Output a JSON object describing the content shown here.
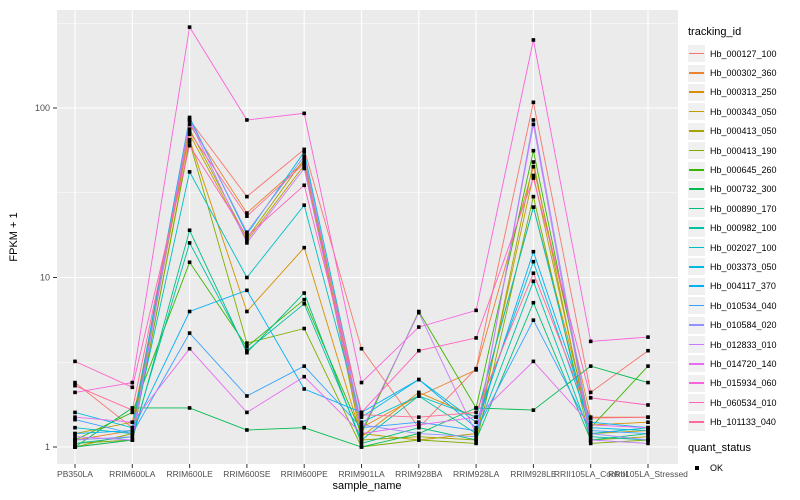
{
  "chart_data": {
    "type": "line",
    "title": "",
    "xlabel": "sample_name",
    "ylabel": "FPKM + 1",
    "y_scale": "log10",
    "y_ticks": [
      1,
      10,
      100
    ],
    "y_minor_ticks": [
      3.162,
      31.62,
      316.2
    ],
    "ylim": [
      0.95,
      380
    ],
    "legend_position": "right",
    "legend_title": "tracking_id",
    "grid": true,
    "panel_bg": "#EBEBEB",
    "grid_color": "#FFFFFF",
    "tick_label_color": "#4D4D4D",
    "point_marker": "square",
    "point_color": "#000000",
    "categories": [
      "PB350LA",
      "RRIM600LA",
      "RRIM600LE",
      "RRIM600SE",
      "RRIM600PE",
      "RRIM901LA",
      "RRIM928BA",
      "RRIM928LA",
      "RRIM928LE",
      "RRII105LA_Control",
      "RRII105LA_Stressed"
    ],
    "series": [
      {
        "name": "Hb_000127_100",
        "color": "#F8766D",
        "values": [
          2.4,
          1.3,
          85,
          30,
          57,
          3.8,
          1.3,
          2.9,
          108,
          2.1,
          3.7
        ]
      },
      {
        "name": "Hb_000302_360",
        "color": "#EA8331",
        "values": [
          1.1,
          1.25,
          80,
          24,
          48,
          1.3,
          2.0,
          2.85,
          45,
          1.5,
          1.5
        ]
      },
      {
        "name": "Hb_000313_250",
        "color": "#D89000",
        "values": [
          1.0,
          1.1,
          65,
          6.3,
          15,
          1.15,
          2.1,
          1.5,
          26,
          1.35,
          1.4
        ]
      },
      {
        "name": "Hb_000343_050",
        "color": "#C09B00",
        "values": [
          1.2,
          1.4,
          70,
          16.5,
          46,
          1.2,
          1.1,
          1.2,
          40,
          1.2,
          1.25
        ]
      },
      {
        "name": "Hb_000413_050",
        "color": "#A3A500",
        "values": [
          1.0,
          1.2,
          75,
          17,
          50,
          1.1,
          1.15,
          1.1,
          48,
          1.1,
          1.15
        ]
      },
      {
        "name": "Hb_000413_190",
        "color": "#7CAE00",
        "values": [
          1.05,
          1.1,
          63,
          4.1,
          5.0,
          1.0,
          1.1,
          1.05,
          30,
          1.05,
          1.1
        ]
      },
      {
        "name": "Hb_000645_260",
        "color": "#39B600",
        "values": [
          1.1,
          1.6,
          12.3,
          3.9,
          7.4,
          1.2,
          6.3,
          1.7,
          56,
          1.3,
          3.0
        ]
      },
      {
        "name": "Hb_000732_300",
        "color": "#00BB4E",
        "values": [
          1.0,
          1.7,
          1.7,
          1.26,
          1.3,
          1.0,
          1.2,
          1.7,
          1.65,
          3.0,
          2.4
        ]
      },
      {
        "name": "Hb_000890_170",
        "color": "#00BF7D",
        "values": [
          1.0,
          1.1,
          19,
          3.6,
          8.1,
          1.05,
          1.3,
          1.1,
          7.1,
          1.1,
          1.2
        ]
      },
      {
        "name": "Hb_000982_100",
        "color": "#00C1A3",
        "values": [
          1.05,
          1.15,
          16,
          3.7,
          7.0,
          1.1,
          2.0,
          1.2,
          9.5,
          1.15,
          1.1
        ]
      },
      {
        "name": "Hb_002027_100",
        "color": "#00BFC4",
        "values": [
          1.3,
          1.2,
          42,
          10,
          26.7,
          1.4,
          2.0,
          1.5,
          26,
          1.2,
          1.3
        ]
      },
      {
        "name": "Hb_003373_050",
        "color": "#00BAE0",
        "values": [
          1.6,
          1.3,
          88,
          18,
          55,
          1.5,
          2.5,
          1.4,
          12.4,
          1.3,
          1.25
        ]
      },
      {
        "name": "Hb_004117_370",
        "color": "#00B0F6",
        "values": [
          1.2,
          1.25,
          6.3,
          8.4,
          2.2,
          1.6,
          2.5,
          1.3,
          14.2,
          1.4,
          1.3
        ]
      },
      {
        "name": "Hb_010534_040",
        "color": "#35A2FF",
        "values": [
          1.45,
          1.2,
          4.7,
          2.0,
          3.0,
          1.3,
          1.4,
          1.25,
          5.6,
          1.25,
          1.2
        ]
      },
      {
        "name": "Hb_010584_020",
        "color": "#9590FF",
        "values": [
          1.1,
          1.15,
          86,
          18.5,
          52,
          1.35,
          1.2,
          1.15,
          85,
          1.2,
          1.1
        ]
      },
      {
        "name": "Hb_012833_010",
        "color": "#C77CFF",
        "values": [
          1.15,
          1.1,
          84,
          16,
          44,
          1.25,
          6.2,
          1.2,
          80,
          1.1,
          1.05
        ]
      },
      {
        "name": "Hb_014720_140",
        "color": "#E76BF3",
        "values": [
          1.5,
          1.4,
          3.8,
          1.6,
          2.6,
          1.2,
          1.35,
          1.5,
          3.2,
          1.35,
          1.3
        ]
      },
      {
        "name": "Hb_015934_060",
        "color": "#FA62DB",
        "values": [
          2.1,
          2.4,
          300,
          85,
          93,
          2.4,
          5.1,
          6.4,
          252,
          4.2,
          4.45
        ]
      },
      {
        "name": "Hb_060534_010",
        "color": "#FF62BC",
        "values": [
          3.2,
          2.25,
          60,
          17.5,
          35,
          1.6,
          3.7,
          4.4,
          38.6,
          1.95,
          1.77
        ]
      },
      {
        "name": "Hb_101133_040",
        "color": "#FF6A98",
        "values": [
          2.3,
          1.65,
          72,
          23,
          47,
          1.55,
          1.5,
          1.6,
          10.6,
          1.48,
          1.5
        ]
      }
    ],
    "quant_status": {
      "title": "quant_status",
      "items": [
        {
          "label": "OK",
          "marker": "black-square"
        }
      ]
    }
  }
}
